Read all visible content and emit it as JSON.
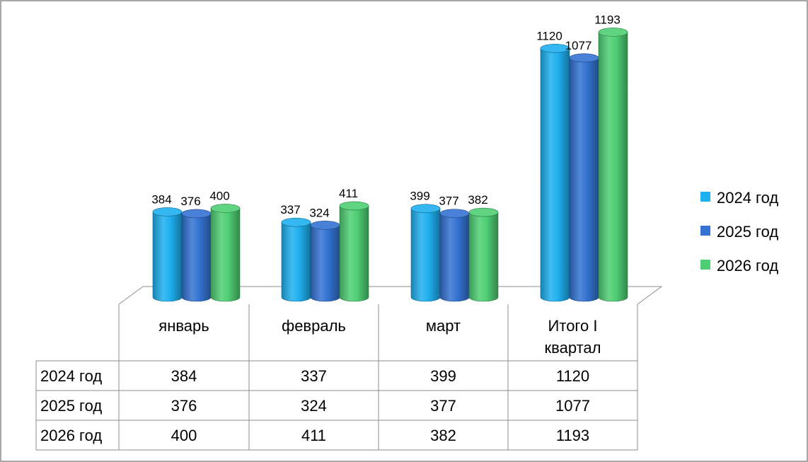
{
  "chart_data": {
    "type": "bar",
    "style": "3d-cylinder",
    "categories": [
      "январь",
      "февраль",
      "март",
      "Итого I квартал"
    ],
    "series": [
      {
        "name": "2024 год",
        "values": [
          384,
          337,
          399,
          1120
        ],
        "color": "#1fb0ef"
      },
      {
        "name": "2025 год",
        "values": [
          376,
          324,
          377,
          1077
        ],
        "color": "#3473d2"
      },
      {
        "name": "2026 год",
        "values": [
          400,
          411,
          382,
          1193
        ],
        "color": "#4fcf74"
      }
    ],
    "data_labels": true,
    "legend": "right",
    "data_table": true,
    "grid": false,
    "ylim": [
      0,
      1200
    ]
  }
}
